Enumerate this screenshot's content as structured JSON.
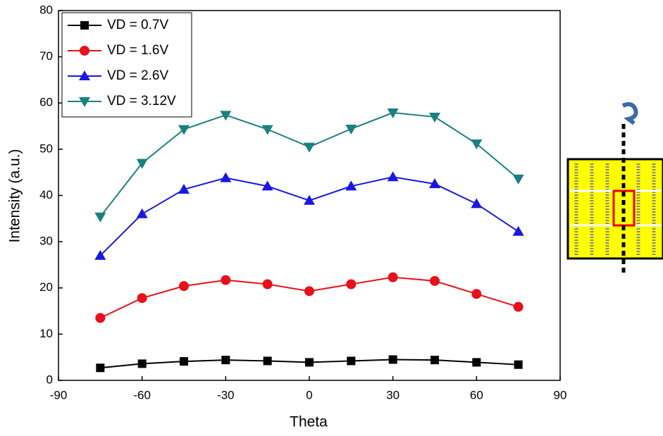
{
  "chart_data": {
    "type": "line",
    "x_label": "Theta",
    "y_label": "Intensity (a.u.)",
    "x": [
      -75,
      -60,
      -45,
      -30,
      -15,
      0,
      15,
      30,
      45,
      60,
      75
    ],
    "series": [
      {
        "name": "VD = 0.7V",
        "color": "#000000",
        "marker": "square",
        "values": [
          2.7,
          3.6,
          4.1,
          4.4,
          4.2,
          3.9,
          4.2,
          4.5,
          4.4,
          3.9,
          3.4
        ]
      },
      {
        "name": "VD = 1.6V",
        "color": "#e8101a",
        "marker": "circle",
        "values": [
          13.5,
          17.8,
          20.4,
          21.7,
          20.8,
          19.3,
          20.8,
          22.3,
          21.5,
          18.7,
          15.9
        ]
      },
      {
        "name": "VD = 2.6V",
        "color": "#1818e0",
        "marker": "triangle-up",
        "values": [
          27,
          36,
          41.3,
          43.8,
          42,
          38.9,
          42,
          44,
          42.5,
          38.2,
          32.2
        ]
      },
      {
        "name": "VD = 3.12V",
        "color": "#1a8080",
        "marker": "triangle-down",
        "values": [
          35.4,
          47,
          54.3,
          57.4,
          54.3,
          50.5,
          54.4,
          57.9,
          57,
          51.2,
          43.6
        ]
      }
    ],
    "xlim": [
      -90,
      90
    ],
    "xticks": [
      -90,
      -60,
      -30,
      0,
      30,
      60,
      90
    ],
    "ylim": [
      0,
      80
    ],
    "yticks": [
      0,
      10,
      20,
      30,
      40,
      50,
      60,
      70,
      80
    ],
    "grid": false,
    "legend": "upper left"
  }
}
